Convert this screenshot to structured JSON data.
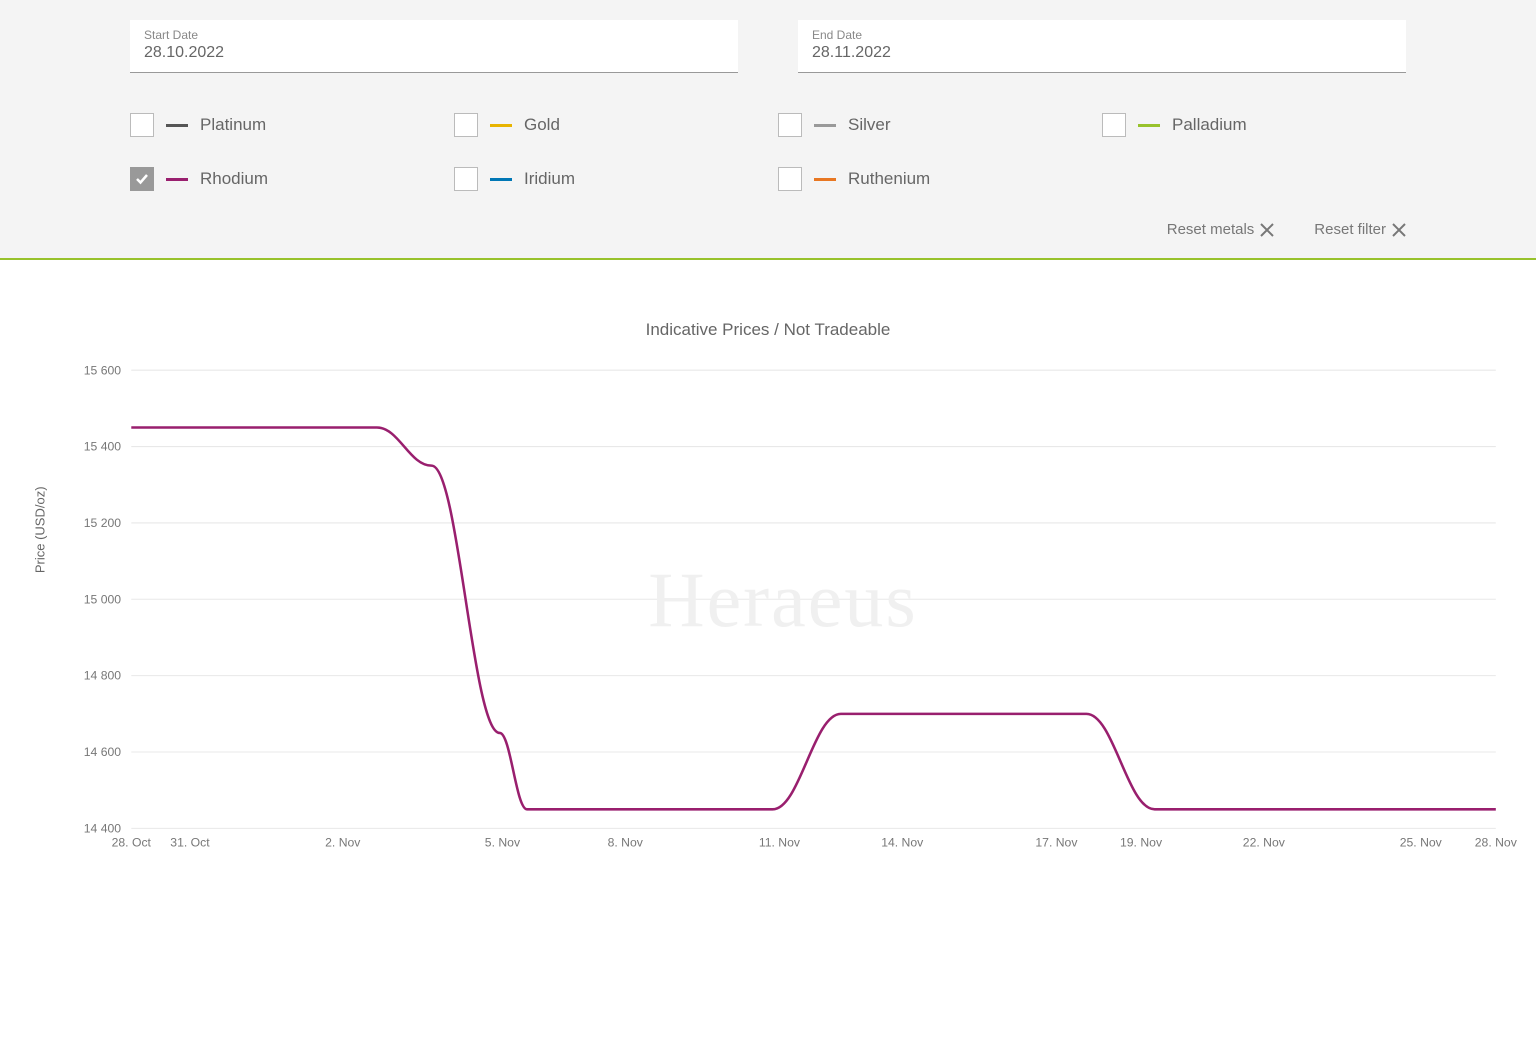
{
  "filters": {
    "start_date": {
      "label": "Start Date",
      "value": "28.10.2022"
    },
    "end_date": {
      "label": "End Date",
      "value": "28.11.2022"
    },
    "metals": [
      {
        "name": "Platinum",
        "color": "#555555",
        "checked": false
      },
      {
        "name": "Gold",
        "color": "#e8b400",
        "checked": false
      },
      {
        "name": "Silver",
        "color": "#999999",
        "checked": false
      },
      {
        "name": "Palladium",
        "color": "#98c22c",
        "checked": false
      },
      {
        "name": "Rhodium",
        "color": "#991f6e",
        "checked": true
      },
      {
        "name": "Iridium",
        "color": "#0077b5",
        "checked": false
      },
      {
        "name": "Ruthenium",
        "color": "#e87722",
        "checked": false
      }
    ],
    "reset_metals_label": "Reset metals",
    "reset_filter_label": "Reset filter"
  },
  "chart": {
    "type": "line",
    "title": "Indicative Prices / Not Tradeable",
    "watermark": "Heraeus",
    "y_axis_label": "Price (USD/oz)",
    "ylim": [
      14400,
      15600
    ],
    "ytick_step": 200,
    "yticks": [
      14400,
      14600,
      14800,
      15000,
      15200,
      15400,
      15600
    ],
    "ytick_labels": [
      "14 400",
      "14 600",
      "14 800",
      "15 000",
      "15 200",
      "15 400",
      "15 600"
    ],
    "x_categories": [
      "28. Oct",
      "31. Oct",
      "2. Nov",
      "5. Nov",
      "8. Nov",
      "11. Nov",
      "14. Nov",
      "17. Nov",
      "19. Nov",
      "22. Nov",
      "25. Nov",
      "28. Nov"
    ],
    "x_positions": [
      0.0,
      0.043,
      0.155,
      0.272,
      0.362,
      0.475,
      0.565,
      0.678,
      0.74,
      0.83,
      0.945,
      1.0
    ],
    "series": [
      {
        "name": "Rhodium",
        "color": "#991f6e",
        "line_width": 2.5,
        "points": [
          [
            0.0,
            15450
          ],
          [
            0.18,
            15450
          ],
          [
            0.22,
            15350
          ],
          [
            0.27,
            14650
          ],
          [
            0.29,
            14450
          ],
          [
            0.47,
            14450
          ],
          [
            0.52,
            14700
          ],
          [
            0.7,
            14700
          ],
          [
            0.75,
            14450
          ],
          [
            1.0,
            14450
          ]
        ]
      }
    ],
    "background_color": "#ffffff",
    "grid_color": "#e8e8e8",
    "axis_font_size": 12,
    "title_font_size": 17
  }
}
